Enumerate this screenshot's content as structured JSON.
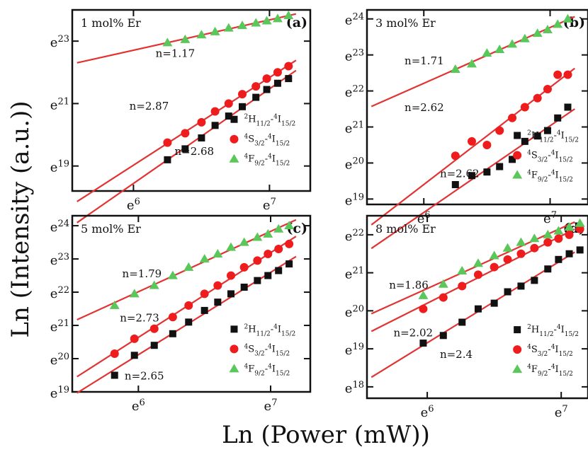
{
  "figure": {
    "ylabel": "Ln (Intensity (a.u.))",
    "xlabel": "Ln (Power (mW))"
  },
  "chart_data": [
    {
      "type": "scatter",
      "panel": "(a)",
      "title": "1 mol% Er",
      "x_ticks": [
        {
          "value": 6,
          "label": "e^6"
        },
        {
          "value": 7,
          "label": "e^7"
        }
      ],
      "y_ticks": [
        {
          "value": 19,
          "label": "e^19"
        },
        {
          "value": 21,
          "label": "e^21"
        },
        {
          "value": 23,
          "label": "e^23"
        }
      ],
      "xlim": [
        5.55,
        7.3
      ],
      "ylim": [
        18.2,
        24.0
      ],
      "legend": "right",
      "series": [
        {
          "name": "2H11/2-4I15/2",
          "sup1": "2",
          "sub1": "11/2",
          "sup2": "4",
          "sub2": "15/2",
          "marker": "square",
          "color": "#111111",
          "x": [
            6.25,
            6.38,
            6.5,
            6.6,
            6.7,
            6.8,
            6.9,
            6.98,
            7.06,
            7.14
          ],
          "y": [
            19.2,
            19.55,
            19.9,
            20.3,
            20.6,
            20.9,
            21.2,
            21.45,
            21.65,
            21.8
          ],
          "fit_label": "n=2.68"
        },
        {
          "name": "4S3/2-4I15/2",
          "sup1": "4",
          "sub1": "3/2",
          "sup2": "4",
          "sub2": "15/2",
          "marker": "circle",
          "color": "#ee1c1c",
          "x": [
            6.25,
            6.38,
            6.5,
            6.6,
            6.7,
            6.8,
            6.9,
            6.98,
            7.06,
            7.14
          ],
          "y": [
            19.75,
            20.05,
            20.4,
            20.75,
            21.0,
            21.3,
            21.55,
            21.8,
            22.0,
            22.2
          ],
          "fit_label": "n=2.87"
        },
        {
          "name": "4F9/2-4I15/2",
          "sup1": "4",
          "sub1": "9/2",
          "sup2": "4",
          "sub2": "15/2",
          "marker": "triangle",
          "color": "#5ac75a",
          "x": [
            6.25,
            6.38,
            6.5,
            6.6,
            6.7,
            6.8,
            6.9,
            6.98,
            7.06,
            7.14
          ],
          "y": [
            22.95,
            23.05,
            23.2,
            23.3,
            23.42,
            23.5,
            23.58,
            23.65,
            23.72,
            23.82
          ],
          "fit_label": "n=1.17"
        }
      ]
    },
    {
      "type": "scatter",
      "panel": "(b)",
      "title": "3 mol% Er",
      "x_ticks": [
        {
          "value": 6,
          "label": "e^6"
        },
        {
          "value": 7,
          "label": "e^7"
        }
      ],
      "y_ticks": [
        {
          "value": 19,
          "label": "e^19"
        },
        {
          "value": 20,
          "label": "e^20"
        },
        {
          "value": 21,
          "label": "e^21"
        },
        {
          "value": 22,
          "label": "e^22"
        },
        {
          "value": 23,
          "label": "e^23"
        },
        {
          "value": 24,
          "label": "e^24"
        }
      ],
      "xlim": [
        5.55,
        7.3
      ],
      "ylim": [
        18.85,
        24.25
      ],
      "legend": "right",
      "series": [
        {
          "name": "2H11/2-4I15/2",
          "sup1": "2",
          "sub1": "11/2",
          "sup2": "4",
          "sub2": "15/2",
          "marker": "square",
          "color": "#111111",
          "x": [
            6.25,
            6.38,
            6.5,
            6.6,
            6.7,
            6.8,
            6.9,
            6.98,
            7.06,
            7.14
          ],
          "y": [
            19.4,
            19.65,
            19.75,
            19.9,
            20.1,
            20.6,
            20.75,
            20.9,
            21.25,
            21.55
          ],
          "fit_label": "n=2.62"
        },
        {
          "name": "4S3/2-4I15/2",
          "sup1": "4",
          "sub1": "3/2",
          "sup2": "4",
          "sub2": "15/2",
          "marker": "circle",
          "color": "#ee1c1c",
          "x": [
            6.25,
            6.38,
            6.5,
            6.6,
            6.7,
            6.8,
            6.9,
            6.98,
            7.06,
            7.14
          ],
          "y": [
            20.2,
            20.6,
            20.5,
            20.9,
            21.25,
            21.55,
            21.8,
            22.05,
            22.45,
            22.45
          ],
          "fit_label": "n=2.62"
        },
        {
          "name": "4F9/2-4I15/2",
          "sup1": "4",
          "sub1": "9/2",
          "sup2": "4",
          "sub2": "15/2",
          "marker": "triangle",
          "color": "#5ac75a",
          "x": [
            6.25,
            6.38,
            6.5,
            6.6,
            6.7,
            6.8,
            6.9,
            6.98,
            7.06,
            7.14
          ],
          "y": [
            22.6,
            22.75,
            23.05,
            23.15,
            23.3,
            23.45,
            23.6,
            23.7,
            23.85,
            24.0
          ],
          "fit_label": "n=1.71"
        }
      ]
    },
    {
      "type": "scatter",
      "panel": "(c)",
      "title": "5 mol% Er",
      "x_ticks": [
        {
          "value": 6,
          "label": "e^6"
        },
        {
          "value": 7,
          "label": "e^7"
        }
      ],
      "y_ticks": [
        {
          "value": 19,
          "label": "e^19"
        },
        {
          "value": 20,
          "label": "e^20"
        },
        {
          "value": 21,
          "label": "e^21"
        },
        {
          "value": 22,
          "label": "e^22"
        },
        {
          "value": 23,
          "label": "e^23"
        },
        {
          "value": 24,
          "label": "e^24"
        }
      ],
      "xlim": [
        5.5,
        7.3
      ],
      "ylim": [
        19.0,
        24.3
      ],
      "legend": "right",
      "series": [
        {
          "name": "2H11/2-4I15/2",
          "sup1": "2",
          "sub1": "11/2",
          "sup2": "4",
          "sub2": "15/2",
          "marker": "square",
          "color": "#111111",
          "x": [
            5.82,
            5.97,
            6.12,
            6.26,
            6.38,
            6.5,
            6.6,
            6.7,
            6.8,
            6.9,
            6.98,
            7.06,
            7.14
          ],
          "y": [
            19.5,
            20.1,
            20.4,
            20.75,
            21.1,
            21.45,
            21.7,
            21.95,
            22.15,
            22.35,
            22.5,
            22.65,
            22.85
          ],
          "fit_label": "n=2.65"
        },
        {
          "name": "4S3/2-4I15/2",
          "sup1": "4",
          "sub1": "3/2",
          "sup2": "4",
          "sub2": "15/2",
          "marker": "circle",
          "color": "#ee1c1c",
          "x": [
            5.82,
            5.97,
            6.12,
            6.26,
            6.38,
            6.5,
            6.6,
            6.7,
            6.8,
            6.9,
            6.98,
            7.06,
            7.14
          ],
          "y": [
            20.15,
            20.6,
            20.9,
            21.25,
            21.6,
            21.95,
            22.2,
            22.5,
            22.75,
            22.95,
            23.15,
            23.3,
            23.45
          ],
          "fit_label": "n=2.73"
        },
        {
          "name": "4F9/2-4I15/2",
          "sup1": "4",
          "sub1": "9/2",
          "sup2": "4",
          "sub2": "15/2",
          "marker": "triangle",
          "color": "#5ac75a",
          "x": [
            5.82,
            5.97,
            6.12,
            6.26,
            6.38,
            6.5,
            6.6,
            6.7,
            6.8,
            6.9,
            6.98,
            7.06,
            7.14
          ],
          "y": [
            21.6,
            21.95,
            22.2,
            22.5,
            22.75,
            23.0,
            23.15,
            23.35,
            23.5,
            23.65,
            23.75,
            23.9,
            24.0
          ],
          "fit_label": "n=1.79"
        }
      ]
    },
    {
      "type": "scatter",
      "panel": "(d)",
      "title": "8 mol% Er",
      "x_ticks": [
        {
          "value": 6,
          "label": "e^6"
        },
        {
          "value": 7,
          "label": "e^7"
        }
      ],
      "y_ticks": [
        {
          "value": 18,
          "label": "e^18"
        },
        {
          "value": 19,
          "label": "e^19"
        },
        {
          "value": 20,
          "label": "e^20"
        },
        {
          "value": 21,
          "label": "e^21"
        },
        {
          "value": 22,
          "label": "e^22"
        }
      ],
      "xlim": [
        5.55,
        7.2
      ],
      "ylim": [
        17.7,
        22.5
      ],
      "legend": "right",
      "series": [
        {
          "name": "2H11/2-4I15/2",
          "sup1": "2",
          "sub1": "11/2",
          "sup2": "4",
          "sub2": "15/2",
          "marker": "square",
          "color": "#111111",
          "x": [
            5.97,
            6.12,
            6.26,
            6.38,
            6.5,
            6.6,
            6.7,
            6.8,
            6.9,
            6.98,
            7.06,
            7.14
          ],
          "y": [
            19.15,
            19.35,
            19.7,
            20.05,
            20.2,
            20.5,
            20.65,
            20.8,
            21.1,
            21.35,
            21.5,
            21.6
          ],
          "fit_label": "n=2.4"
        },
        {
          "name": "4S3/2-4I15/2",
          "sup1": "4",
          "sub1": "3/2",
          "sup2": "4",
          "sub2": "15/2",
          "marker": "circle",
          "color": "#ee1c1c",
          "x": [
            5.97,
            6.12,
            6.26,
            6.38,
            6.5,
            6.6,
            6.7,
            6.8,
            6.9,
            6.98,
            7.06,
            7.14
          ],
          "y": [
            20.05,
            20.35,
            20.65,
            20.95,
            21.15,
            21.35,
            21.5,
            21.65,
            21.8,
            21.9,
            22.0,
            22.15
          ],
          "fit_label": "n=2.02"
        },
        {
          "name": "4F9/2-4I15/2",
          "sup1": "4",
          "sub1": "9/2",
          "sup2": "4",
          "sub2": "15/2",
          "marker": "triangle",
          "color": "#5ac75a",
          "x": [
            5.97,
            6.12,
            6.26,
            6.38,
            6.5,
            6.6,
            6.7,
            6.8,
            6.9,
            6.98,
            7.06,
            7.14
          ],
          "y": [
            20.4,
            20.7,
            21.05,
            21.25,
            21.45,
            21.65,
            21.8,
            21.9,
            22.0,
            22.1,
            22.2,
            22.3
          ],
          "fit_label": "n=1.86"
        }
      ]
    }
  ]
}
